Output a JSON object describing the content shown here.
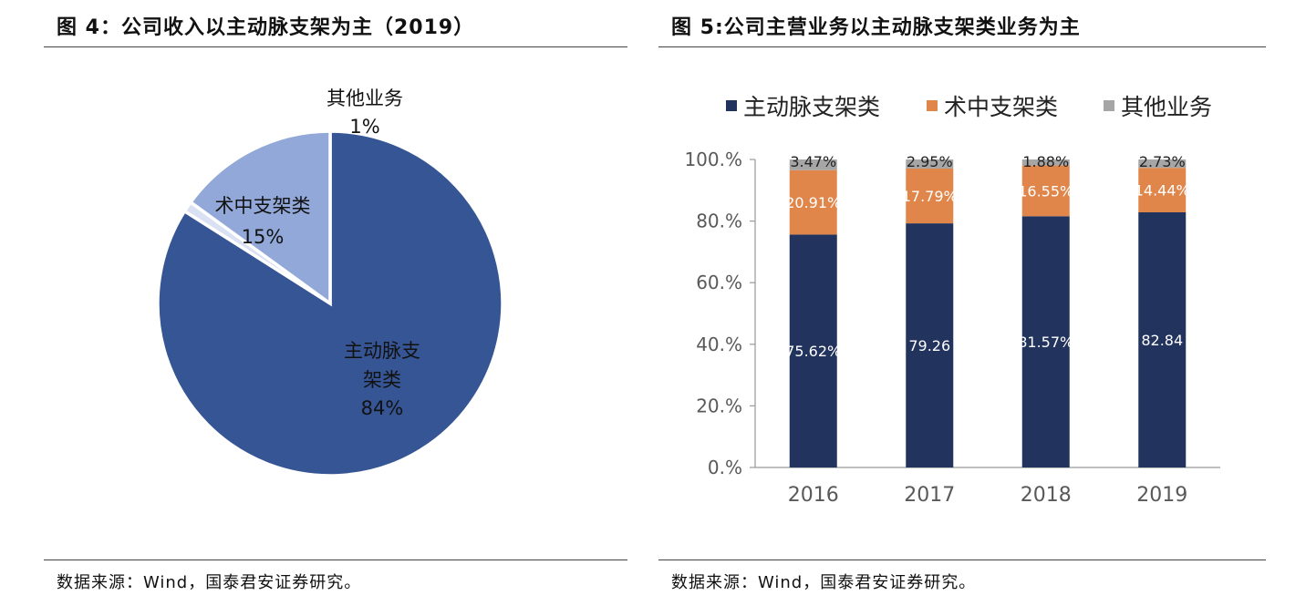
{
  "left": {
    "title": "图 4：公司收入以主动脉支架为主（2019）",
    "source": "数据来源：Wind，国泰君安证券研究。"
  },
  "right": {
    "title": "图 5:公司主营业务以主动脉支架类业务为主",
    "source": "数据来源：Wind，国泰君安证券研究。"
  },
  "chart_data": [
    {
      "type": "pie",
      "title": "图 4：公司收入以主动脉支架为主（2019）",
      "slices": [
        {
          "label": "主动脉支架类",
          "value": 84,
          "display": "84%",
          "color": "#365594"
        },
        {
          "label": "其他业务",
          "value": 1,
          "display": "1%",
          "color": "#d9e1f2"
        },
        {
          "label": "术中支架类",
          "value": 15,
          "display": "15%",
          "color": "#91a8d8"
        }
      ]
    },
    {
      "type": "bar",
      "stacked": true,
      "title": "图 5:公司主营业务以主动脉支架类业务为主",
      "categories": [
        "2016",
        "2017",
        "2018",
        "2019"
      ],
      "ylim": [
        0,
        100
      ],
      "yticks": [
        "0.%",
        "20.%",
        "40.%",
        "60.%",
        "80.%",
        "100.%"
      ],
      "legend": "top",
      "series": [
        {
          "name": "主动脉支架类",
          "color": "#22335e",
          "values": [
            75.62,
            79.26,
            81.57,
            82.84
          ],
          "labels": [
            "75.62%",
            "79.26",
            "81.57%",
            "82.84"
          ]
        },
        {
          "name": "术中支架类",
          "color": "#e0864a",
          "values": [
            20.91,
            17.79,
            16.55,
            14.44
          ],
          "labels": [
            "20.91%",
            "17.79%",
            "16.55%",
            "14.44%"
          ]
        },
        {
          "name": "其他业务",
          "color": "#a6a6a6",
          "values": [
            3.47,
            2.95,
            1.88,
            2.73
          ],
          "labels": [
            "3.47%",
            "2.95%",
            "1.88%",
            "2.73%"
          ]
        }
      ]
    }
  ]
}
